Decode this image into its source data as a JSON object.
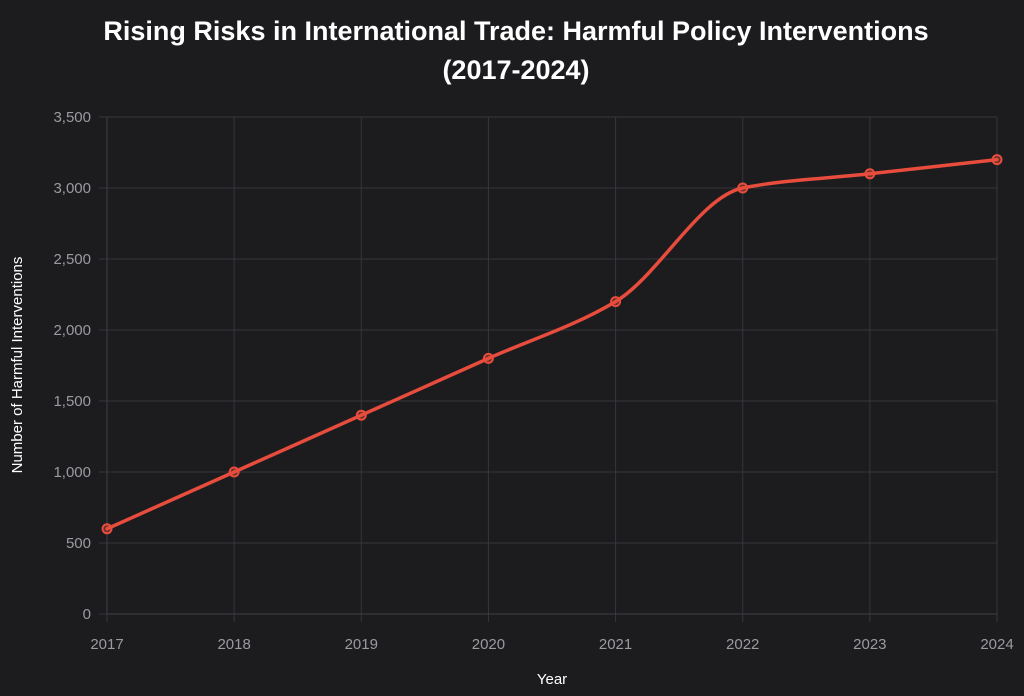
{
  "chart_data": {
    "type": "line",
    "title": [
      "Rising Risks in International Trade: Harmful Policy Interventions",
      "(2017-2024)"
    ],
    "xlabel": "Year",
    "ylabel": "Number of Harmful Interventions",
    "x": [
      "2017",
      "2018",
      "2019",
      "2020",
      "2021",
      "2022",
      "2023",
      "2024"
    ],
    "y_ticks": [
      "0",
      "500",
      "1,000",
      "1,500",
      "2,000",
      "2,500",
      "3,000",
      "3,500"
    ],
    "y_tick_values": [
      0,
      500,
      1000,
      1500,
      2000,
      2500,
      3000,
      3500
    ],
    "ylim": [
      0,
      3500
    ],
    "grid": true,
    "series": [
      {
        "values": [
          600,
          1000,
          1400,
          1800,
          2200,
          3000,
          3100,
          3200
        ],
        "color": "#e74c3c"
      }
    ]
  }
}
